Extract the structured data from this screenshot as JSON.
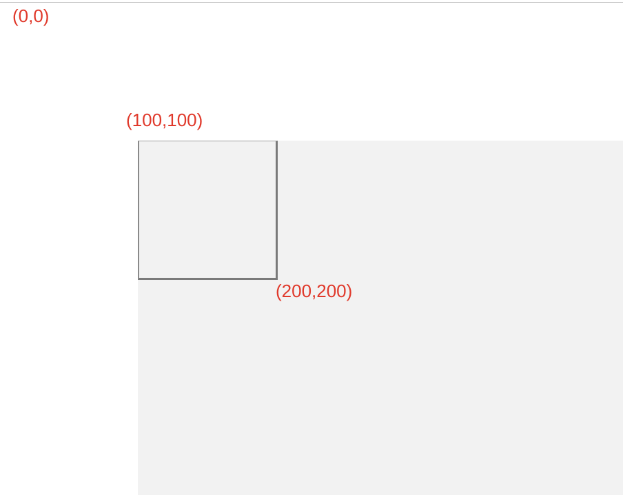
{
  "labels": {
    "origin": "(0,0)",
    "top_left": "(100,100)",
    "bottom_right": "(200,200)"
  },
  "colors": {
    "label": "#e0392b",
    "canvas": "#f2f2f2",
    "box_border": "#7a7a7a"
  }
}
